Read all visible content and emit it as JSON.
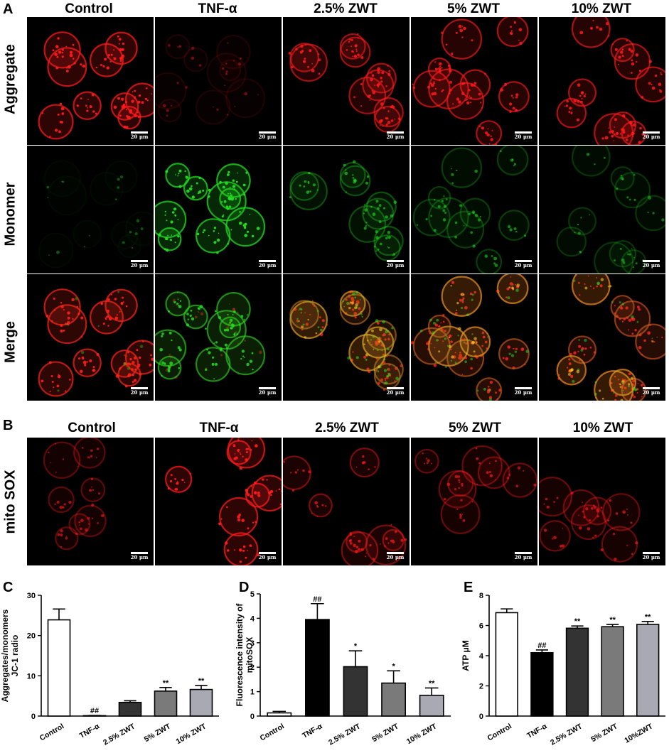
{
  "panels": {
    "A": "A",
    "B": "B",
    "C": "C",
    "D": "D",
    "E": "E"
  },
  "groups": [
    "Control",
    "TNF-α",
    "2.5% ZWT",
    "5% ZWT",
    "10% ZWT"
  ],
  "rows_A": [
    "Aggregate",
    "Monomer",
    "Merge"
  ],
  "row_B": "mito SOX",
  "scale_label": "20 μm",
  "colors": {
    "aggregate": "#ff1a1a",
    "monomer": "#22dd22",
    "merge_yellow": "#ffcc22"
  },
  "chart_data": [
    {
      "type": "bar",
      "panel": "C",
      "categories": [
        "Control",
        "TNF-α",
        "2.5% ZWT",
        "5% ZWT",
        "10% ZWT"
      ],
      "values": [
        23.9,
        0.1,
        3.4,
        6.2,
        6.6
      ],
      "errors": [
        2.7,
        0.05,
        0.4,
        0.9,
        1.0
      ],
      "significance": [
        "",
        "##",
        "",
        "**",
        "**"
      ],
      "ylabel_line1": "Aggregates/monomers",
      "ylabel_line2": "JC-1 radio",
      "ylim": [
        0,
        30
      ],
      "yticks": [
        0,
        10,
        20,
        30
      ],
      "bar_colors": [
        "#ffffff",
        "#000000",
        "#333333",
        "#7a7a7a",
        "#a9a9b4"
      ]
    },
    {
      "type": "bar",
      "panel": "D",
      "categories": [
        "Control",
        "TNF-α",
        "2.5% ZWT",
        "5% ZWT",
        "10% ZWT"
      ],
      "values": [
        0.13,
        3.95,
        2.02,
        1.35,
        0.85
      ],
      "errors": [
        0.06,
        0.65,
        0.65,
        0.5,
        0.3
      ],
      "significance": [
        "",
        "##",
        "*",
        "*",
        "**"
      ],
      "ylabel_line1": "Fluorescence intensity of",
      "ylabel_line2": "mitoSOX",
      "ylim": [
        0,
        5
      ],
      "yticks": [
        0,
        1,
        2,
        3,
        4,
        5
      ],
      "bar_colors": [
        "#ffffff",
        "#000000",
        "#333333",
        "#7a7a7a",
        "#a9a9b4"
      ]
    },
    {
      "type": "bar",
      "panel": "E",
      "categories": [
        "Control",
        "TNF-α",
        "2.5% ZWT",
        "5% ZWT",
        "10%ZWT"
      ],
      "values": [
        6.85,
        4.2,
        5.82,
        5.92,
        6.07
      ],
      "errors": [
        0.25,
        0.18,
        0.15,
        0.15,
        0.2
      ],
      "significance": [
        "",
        "##",
        "**",
        "**",
        "**"
      ],
      "ylabel_line1": "ATP μM",
      "ylabel_line2": "",
      "ylim": [
        0,
        8
      ],
      "yticks": [
        0,
        2,
        4,
        6,
        8
      ],
      "bar_colors": [
        "#ffffff",
        "#000000",
        "#333333",
        "#7a7a7a",
        "#a9a9b4"
      ]
    }
  ]
}
